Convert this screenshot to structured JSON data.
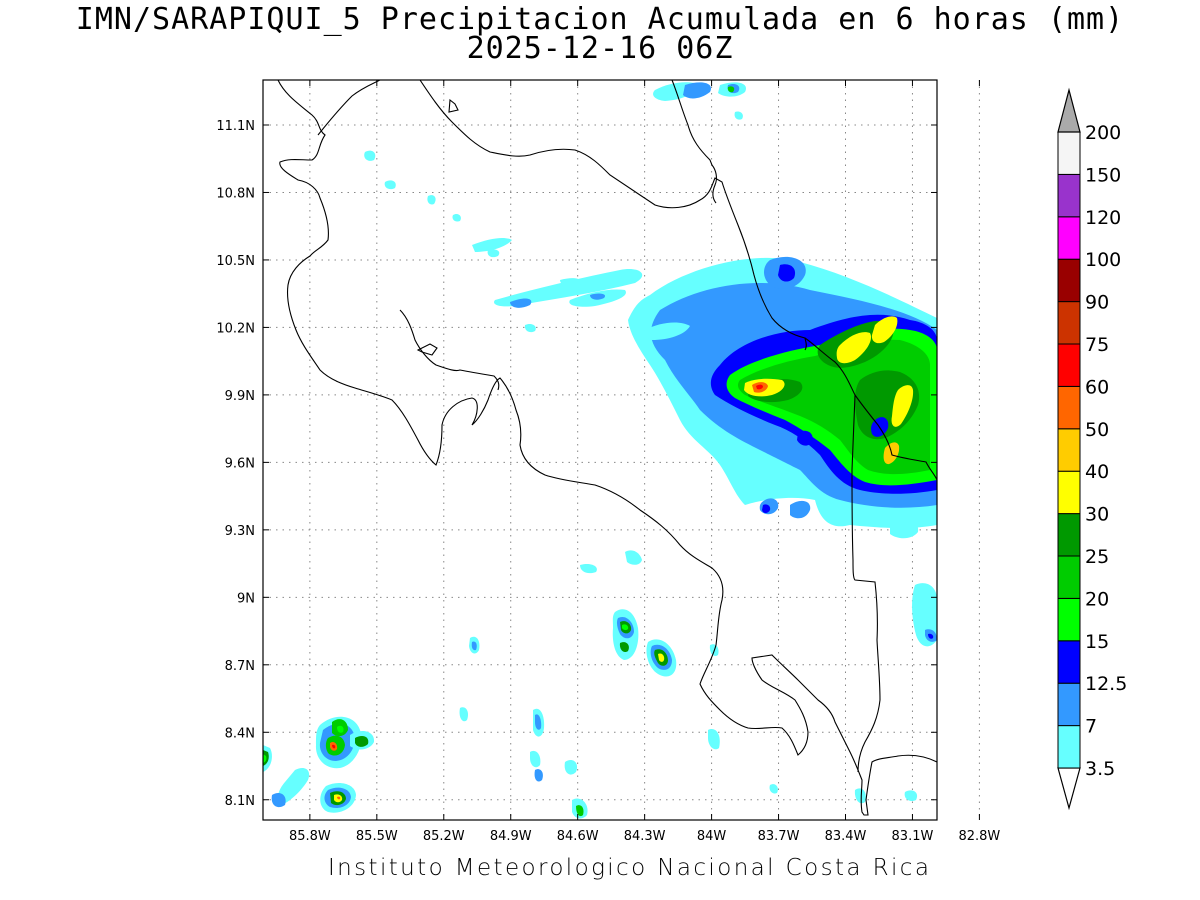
{
  "title": {
    "line1": "IMN/SARAPIQUI_5 Precipitacion Acumulada en 6 horas (mm)",
    "line2": "2025-12-16 06Z"
  },
  "footer": "Instituto Meteorologico Nacional Costa Rica",
  "axes": {
    "lon_range": [
      -86.01,
      -82.99
    ],
    "lat_range": [
      8.01,
      11.3
    ],
    "lon_ticks": [
      {
        "value": -85.8,
        "label": "85.8W"
      },
      {
        "value": -85.5,
        "label": "85.5W"
      },
      {
        "value": -85.2,
        "label": "85.2W"
      },
      {
        "value": -84.9,
        "label": "84.9W"
      },
      {
        "value": -84.6,
        "label": "84.6W"
      },
      {
        "value": -84.3,
        "label": "84.3W"
      },
      {
        "value": -84.0,
        "label": "84W"
      },
      {
        "value": -83.7,
        "label": "83.7W"
      },
      {
        "value": -83.4,
        "label": "83.4W"
      },
      {
        "value": -83.1,
        "label": "83.1W"
      },
      {
        "value": -82.8,
        "label": "82.8W"
      }
    ],
    "lat_ticks": [
      {
        "value": 8.1,
        "label": "8.1N"
      },
      {
        "value": 8.4,
        "label": "8.4N"
      },
      {
        "value": 8.7,
        "label": "8.7N"
      },
      {
        "value": 9.0,
        "label": "9N"
      },
      {
        "value": 9.3,
        "label": "9.3N"
      },
      {
        "value": 9.6,
        "label": "9.6N"
      },
      {
        "value": 9.9,
        "label": "9.9N"
      },
      {
        "value": 10.2,
        "label": "10.2N"
      },
      {
        "value": 10.5,
        "label": "10.5N"
      },
      {
        "value": 10.8,
        "label": "10.8N"
      },
      {
        "value": 11.1,
        "label": "11.1N"
      }
    ],
    "grid": "dotted"
  },
  "legend": {
    "units": "mm",
    "levels": [
      {
        "label": "3.5",
        "color": "#66ffff"
      },
      {
        "label": "7",
        "color": "#3399ff"
      },
      {
        "label": "12.5",
        "color": "#0000ff"
      },
      {
        "label": "15",
        "color": "#00ff00"
      },
      {
        "label": "20",
        "color": "#00cc00"
      },
      {
        "label": "25",
        "color": "#009900"
      },
      {
        "label": "30",
        "color": "#ffff00"
      },
      {
        "label": "40",
        "color": "#ffcc00"
      },
      {
        "label": "50",
        "color": "#ff6600"
      },
      {
        "label": "60",
        "color": "#ff0000"
      },
      {
        "label": "75",
        "color": "#cc3300"
      },
      {
        "label": "90",
        "color": "#990000"
      },
      {
        "label": "100",
        "color": "#ff00ff"
      },
      {
        "label": "120",
        "color": "#9933cc"
      },
      {
        "label": "150",
        "color": "#f5f5f5"
      },
      {
        "label": "200",
        "color": "#aaaaaa"
      }
    ]
  }
}
